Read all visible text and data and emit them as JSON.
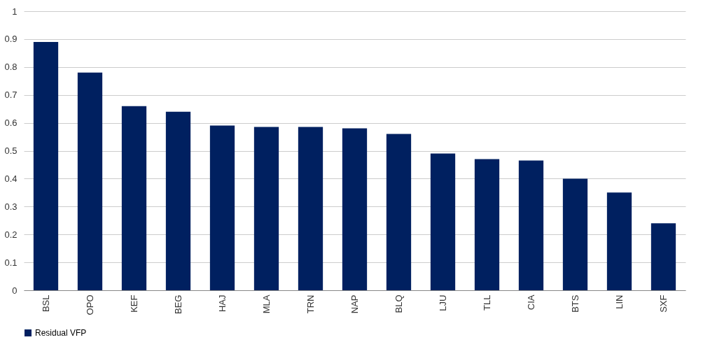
{
  "chart_data": {
    "type": "bar",
    "categories": [
      "BSL",
      "OPO",
      "KEF",
      "BEG",
      "HAJ",
      "MLA",
      "TRN",
      "NAP",
      "BLQ",
      "LJU",
      "TLL",
      "CIA",
      "BTS",
      "LIN",
      "SXF"
    ],
    "series": [
      {
        "name": "Residual VFP",
        "color": "#002060",
        "values": [
          0.89,
          0.78,
          0.66,
          0.64,
          0.59,
          0.585,
          0.585,
          0.58,
          0.56,
          0.49,
          0.47,
          0.465,
          0.4,
          0.35,
          0.24
        ]
      }
    ],
    "ylim": [
      0,
      1
    ],
    "yticks": [
      0,
      0.1,
      0.2,
      0.3,
      0.4,
      0.5,
      0.6,
      0.7,
      0.8,
      0.9,
      1
    ],
    "grid": "y",
    "legend": "bottom"
  }
}
